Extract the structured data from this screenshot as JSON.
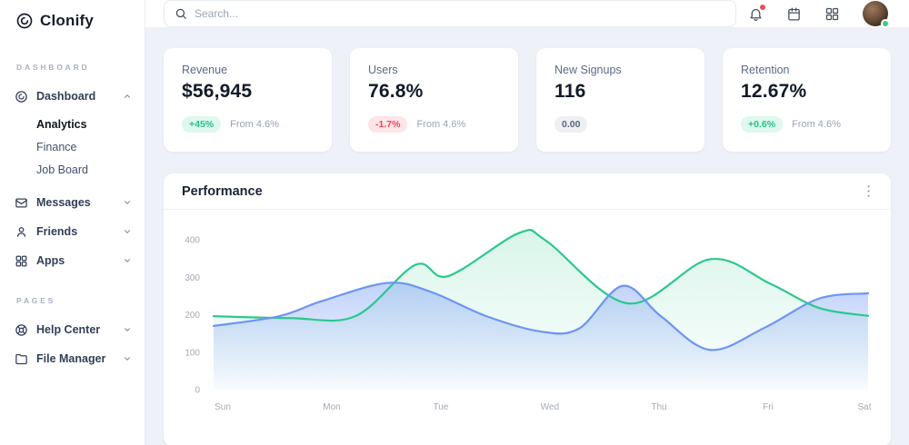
{
  "brand": {
    "name": "Clonify"
  },
  "sidebar": {
    "sections": {
      "dashboard_label": "DASHBOARD",
      "pages_label": "PAGES"
    },
    "items": {
      "dashboard": "Dashboard",
      "analytics": "Analytics",
      "finance": "Finance",
      "job_board": "Job Board",
      "messages": "Messages",
      "friends": "Friends",
      "apps": "Apps",
      "help_center": "Help Center",
      "file_manager": "File Manager"
    }
  },
  "topbar": {
    "search_placeholder": "Search..."
  },
  "stat_cards": [
    {
      "label": "Revenue",
      "value": "$56,945",
      "badge": "+45%",
      "badge_type": "positive",
      "note": "From 4.6%"
    },
    {
      "label": "Users",
      "value": "76.8%",
      "badge": "-1.7%",
      "badge_type": "negative",
      "note": "From 4.6%"
    },
    {
      "label": "New Signups",
      "value": "116",
      "badge": "0.00",
      "badge_type": "neutral",
      "note": ""
    },
    {
      "label": "Retention",
      "value": "12.67%",
      "badge": "+0.6%",
      "badge_type": "positive",
      "note": "From 4.6%"
    }
  ],
  "chart_card": {
    "title": "Performance"
  },
  "chart_data": {
    "type": "area",
    "title": "Performance",
    "x_ticks": [
      "Sun",
      "Mon",
      "Tue",
      "Wed",
      "Thu",
      "Fri",
      "Sat"
    ],
    "y_ticks": [
      0,
      100,
      200,
      300,
      400
    ],
    "x_range": [
      0,
      6
    ],
    "ylim": [
      0,
      480
    ],
    "grid": false,
    "legend": null,
    "series": [
      {
        "name": "series-green",
        "color": "#2bc88c",
        "fill_from": "rgba(43,200,140,0.18)",
        "fill_to": "rgba(43,200,140,0.01)",
        "points": [
          [
            0,
            196
          ],
          [
            0.7,
            191
          ],
          [
            1.3,
            196
          ],
          [
            1.85,
            333
          ],
          [
            2.15,
            303
          ],
          [
            2.8,
            418
          ],
          [
            3.05,
            397
          ],
          [
            3.8,
            230
          ],
          [
            4.55,
            348
          ],
          [
            5.1,
            283
          ],
          [
            5.55,
            218
          ],
          [
            6,
            197
          ]
        ]
      },
      {
        "name": "series-blue",
        "color": "#6d94f5",
        "fill_from": "rgba(109,148,245,0.42)",
        "fill_to": "rgba(109,148,245,0.03)",
        "points": [
          [
            0,
            170
          ],
          [
            0.6,
            196
          ],
          [
            1,
            237
          ],
          [
            1.6,
            285
          ],
          [
            2,
            260
          ],
          [
            2.5,
            196
          ],
          [
            3,
            155
          ],
          [
            3.35,
            163
          ],
          [
            3.75,
            277
          ],
          [
            4.1,
            196
          ],
          [
            4.55,
            106
          ],
          [
            5.05,
            165
          ],
          [
            5.55,
            243
          ],
          [
            6,
            257
          ]
        ]
      }
    ]
  }
}
